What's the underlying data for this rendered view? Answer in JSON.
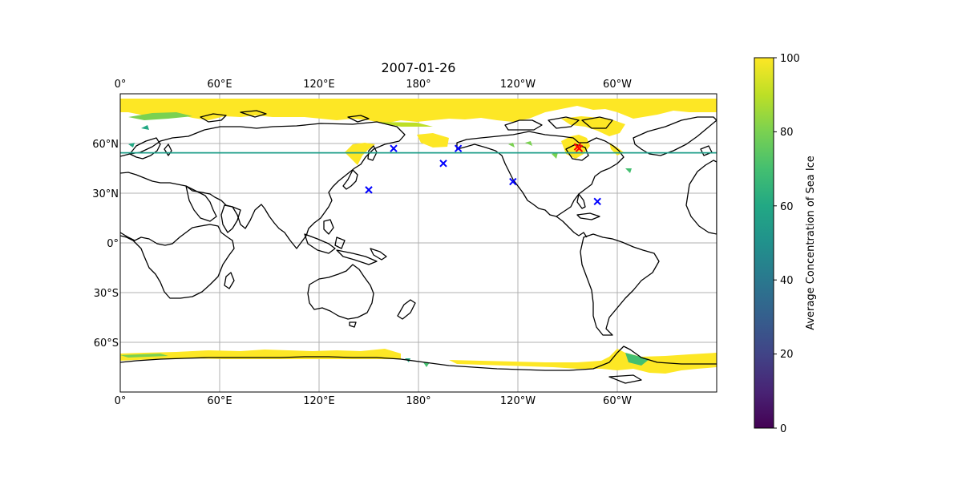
{
  "chart_data": {
    "type": "map",
    "title": "2007-01-26",
    "projection": "PlateCarree, central_longitude 180",
    "x_ticks": [
      "0°",
      "60°E",
      "120°E",
      "180°",
      "120°W",
      "60°W"
    ],
    "y_ticks": [
      "60°N",
      "30°N",
      "0°",
      "30°S",
      "60°S"
    ],
    "grid": true,
    "reference_line": {
      "latitude": 54,
      "color": "#1f9e89"
    },
    "colorbar": {
      "label": "Average Concentration of Sea Ice",
      "ticks": [
        "0",
        "20",
        "40",
        "60",
        "80",
        "100"
      ],
      "range": [
        0,
        100
      ],
      "colormap": "viridis"
    },
    "markers": {
      "blue": {
        "color": "#0000ff",
        "symbol": "x",
        "points": [
          {
            "lon": 150,
            "lat": 32
          },
          {
            "lon": 165,
            "lat": 57
          },
          {
            "lon": -165,
            "lat": 48
          },
          {
            "lon": -156,
            "lat": 57
          },
          {
            "lon": -123,
            "lat": 37
          },
          {
            "lon": -72,
            "lat": 25
          }
        ]
      },
      "red": {
        "color": "#ff0000",
        "symbol": "x",
        "points": [
          {
            "lon": -84,
            "lat": 58
          },
          {
            "lon": -83,
            "lat": 57
          }
        ]
      }
    }
  }
}
